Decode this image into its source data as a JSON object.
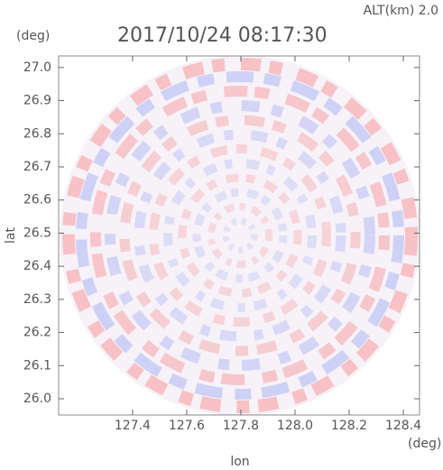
{
  "chart_data": {
    "type": "radar-ppi",
    "title": "2017/10/24 08:17:30",
    "subtitle": "ALT(km)  2.0",
    "x_label": "lon",
    "y_label": "lat",
    "x_unit": "(deg)",
    "y_unit": "(deg)",
    "xlim": [
      127.127,
      128.46
    ],
    "ylim": [
      25.951,
      27.035
    ],
    "xticks": [
      127.4,
      127.6,
      127.8,
      {
        "value": 128,
        "label": "128.0"
      },
      128.2,
      128.4
    ],
    "yticks": [
      {
        "value": 26,
        "label": "26.0"
      },
      26.1,
      26.2,
      26.3,
      26.4,
      26.5,
      26.6,
      26.7,
      26.8,
      26.9,
      {
        "value": 27,
        "label": "27.0"
      }
    ]
  }
}
